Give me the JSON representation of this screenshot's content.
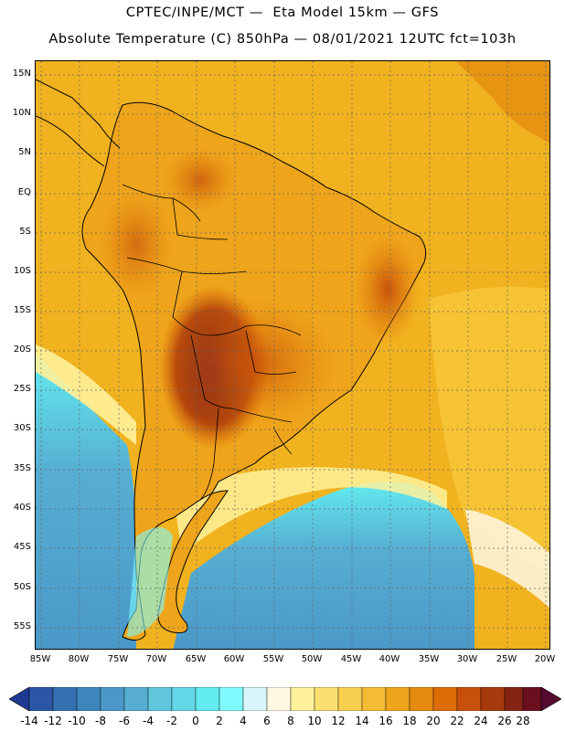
{
  "header": {
    "line1": "CPTEC/INPE/MCT —  Eta Model 15km — GFS",
    "line2": "Absolute Temperature (C) 850hPa — 08/01/2021 12UTC fct=103h"
  },
  "axes": {
    "lat_labels": [
      "15N",
      "10N",
      "5N",
      "EQ",
      "5S",
      "10S",
      "15S",
      "20S",
      "25S",
      "30S",
      "35S",
      "40S",
      "45S",
      "50S",
      "55S"
    ],
    "lon_labels": [
      "85W",
      "80W",
      "75W",
      "70W",
      "65W",
      "60W",
      "55W",
      "50W",
      "45W",
      "40W",
      "35W",
      "30W",
      "25W",
      "20W"
    ]
  },
  "colorbar": {
    "labels": [
      "-14",
      "-12",
      "-10",
      "-8",
      "-6",
      "-4",
      "-2",
      "0",
      "2",
      "4",
      "6",
      "8",
      "10",
      "12",
      "14",
      "16",
      "18",
      "20",
      "22",
      "24",
      "26",
      "28"
    ],
    "colors": [
      "#1f3a93",
      "#2b56a6",
      "#3570b2",
      "#3f85bd",
      "#4a98c8",
      "#57aed2",
      "#5fc6dc",
      "#65d8e8",
      "#62ecef",
      "#7ffaff",
      "#d8f6fb",
      "#fff7e2",
      "#fff19a",
      "#fbe070",
      "#f9cf50",
      "#f4bb35",
      "#eea41b",
      "#e78a10",
      "#de6b05",
      "#c9500a",
      "#a63a0c",
      "#852312",
      "#6a0f1e",
      "#560a30"
    ]
  },
  "map": {
    "land_color": "#eea41b",
    "ocean_color": "#f1b21f",
    "cold_color": "#5fc6dc",
    "hot_color": "#7a1e24"
  }
}
